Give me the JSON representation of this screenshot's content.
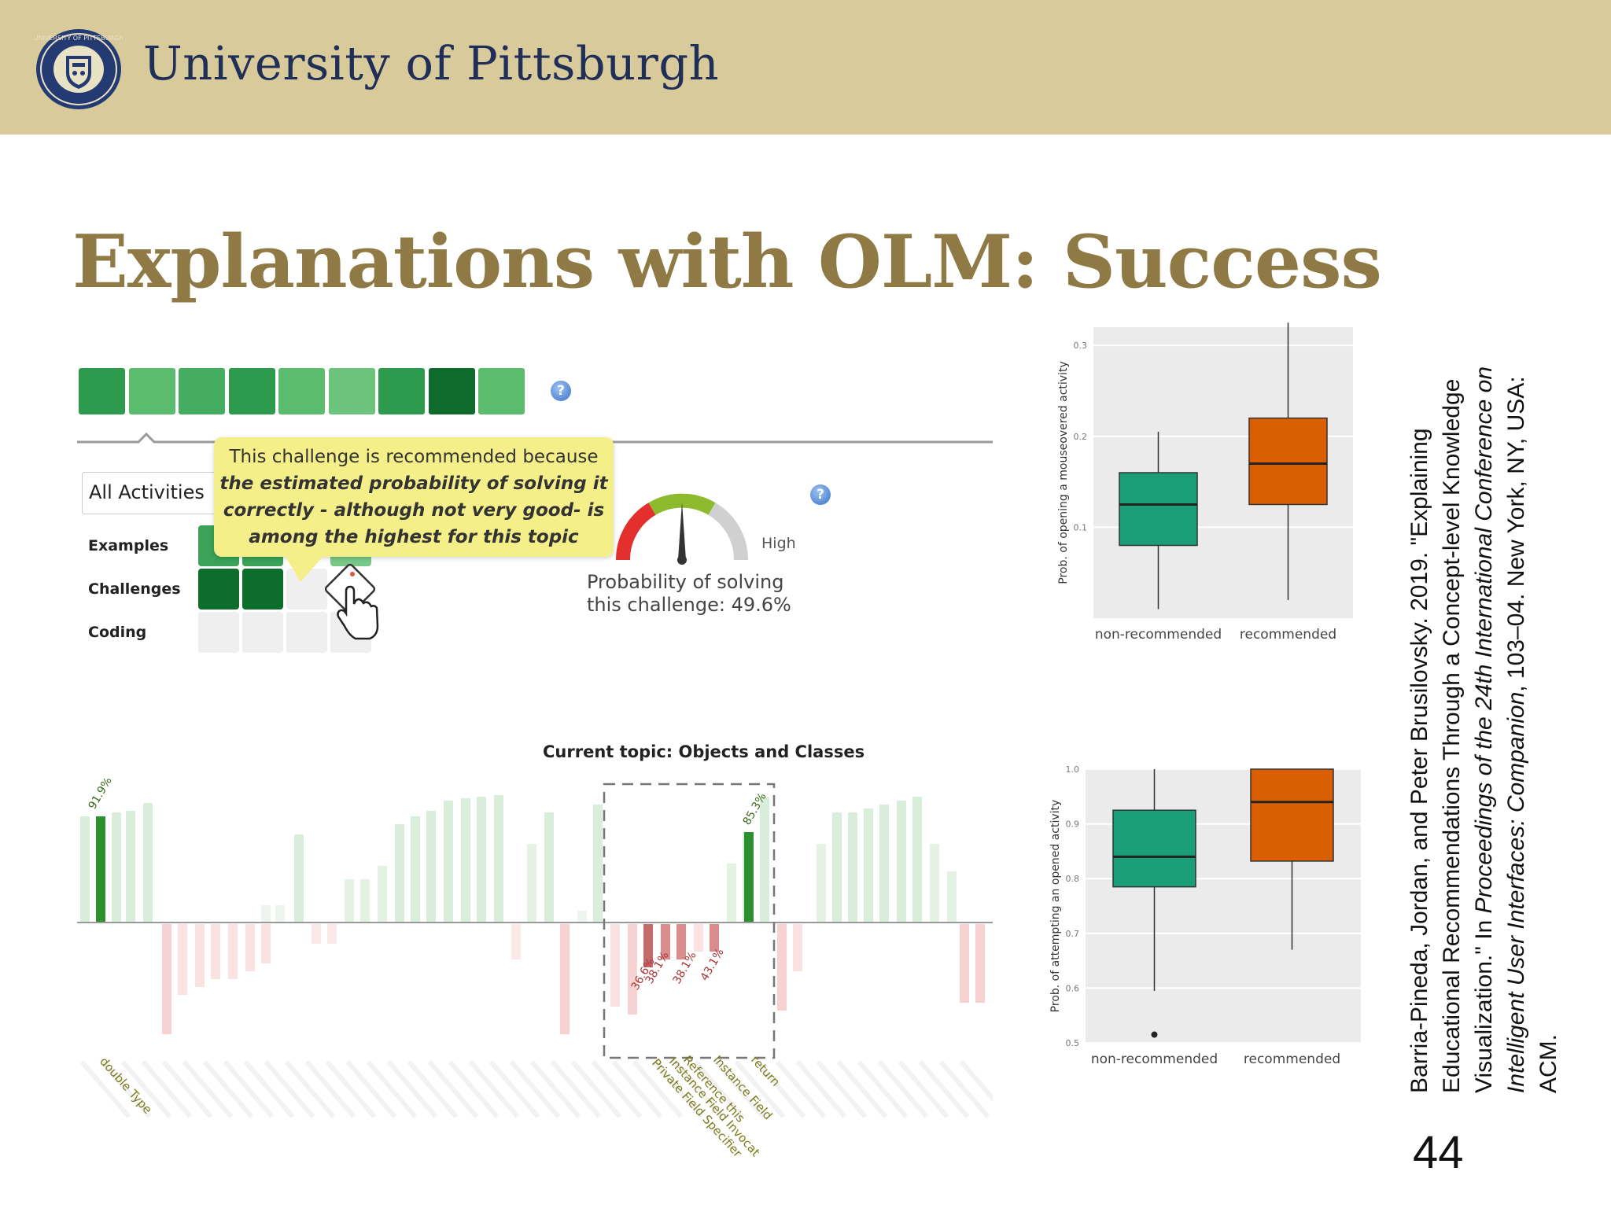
{
  "header": {
    "university": "University of Pittsburgh",
    "seal_text": "UNIVERSITY OF PITTSBURGH",
    "background": "#d8ca9b"
  },
  "slide": {
    "title": "Explanations with OLM: Success",
    "page_number": "44"
  },
  "olm": {
    "all_activities_label": "All Activities",
    "rows": [
      "Examples",
      "Challenges",
      "Coding"
    ],
    "tooltip": {
      "line1": "This challenge is recommended because",
      "line2": "the estimated probability of solving it",
      "line3": "correctly - although not very good- is",
      "line4": "among the highest for this topic"
    },
    "gauge": {
      "high_label": "High",
      "caption_line1": "Probability of solving",
      "caption_line2": "this challenge: 49.6%",
      "probability": 0.496
    },
    "help_glyph": "?",
    "topic_squares": [
      "#2e9a4d",
      "#5cbc6e",
      "#44ad5f",
      "#2e9a4d",
      "#5cbc6e",
      "#6cc37c",
      "#2e9a4d",
      "#0f6b2c",
      "#5cbc6e"
    ]
  },
  "concept_chart": {
    "title": "Current topic: Objects and Classes",
    "highlight_labels": [
      "91.9%",
      "85.3%",
      "36.6%",
      "38.1%",
      "38.1%",
      "43.1%"
    ],
    "concept_labels": [
      "double Type",
      "return",
      "Instance Field",
      "Reference this",
      "Instance Field Invocat",
      "Private Field Specifier"
    ]
  },
  "chart_data": [
    {
      "type": "box",
      "ylabel": "Prob. of opening a mouseovered activity",
      "categories": [
        "non-recommended",
        "recommended"
      ],
      "yticks": [
        "0.1",
        "0.2",
        "0.3"
      ],
      "ylim": [
        0.0,
        0.32
      ],
      "colors": [
        "#1a9e77",
        "#d95f02"
      ],
      "boxes": [
        {
          "category": "non-recommended",
          "whisker_low": 0.01,
          "q1": 0.08,
          "median": 0.125,
          "q3": 0.16,
          "whisker_high": 0.205
        },
        {
          "category": "recommended",
          "whisker_low": 0.02,
          "q1": 0.125,
          "median": 0.17,
          "q3": 0.22,
          "whisker_high": 0.325
        }
      ]
    },
    {
      "type": "box",
      "ylabel": "Prob. of attempting an opened activity",
      "categories": [
        "non-recommended",
        "recommended"
      ],
      "yticks": [
        "0.5",
        "0.6",
        "0.7",
        "0.8",
        "0.9",
        "1.0"
      ],
      "ylim": [
        0.5,
        1.0
      ],
      "colors": [
        "#1a9e77",
        "#d95f02"
      ],
      "boxes": [
        {
          "category": "non-recommended",
          "whisker_low": 0.595,
          "q1": 0.785,
          "median": 0.84,
          "q3": 0.925,
          "whisker_high": 1.0,
          "outliers": [
            0.515
          ]
        },
        {
          "category": "recommended",
          "whisker_low": 0.67,
          "q1": 0.832,
          "median": 0.94,
          "q3": 1.0,
          "whisker_high": 1.0
        }
      ]
    }
  ],
  "citation": {
    "line1": "Barria-Pineda, Jordan, and Peter Brusilovsky. 2019. \"Explaining",
    "line2": "Educational Recommendations Through a Concept-level Knowledge",
    "line3_a": "Visualization.\" In ",
    "line3_b": "Proceedings of the 24th International Conference on",
    "line4_a": "Intelligent User Interfaces: Companion",
    "line4_b": ", 103–04. New York, NY, USA:",
    "line5": "ACM."
  }
}
